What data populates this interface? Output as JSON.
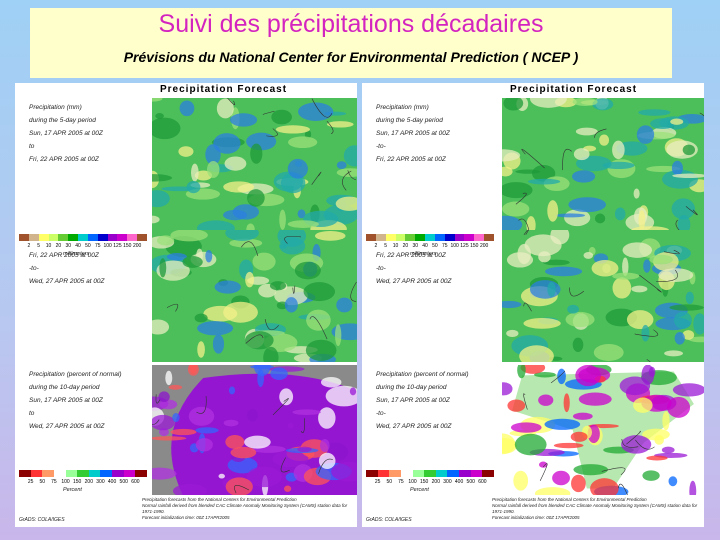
{
  "header": {
    "title": "Suivi des précipitations décadaires",
    "subtitle": "Prévisions du National Center for Environmental Prediction ( NCEP )"
  },
  "panels": [
    {
      "heading": "Precipitation Forecast",
      "sections": [
        {
          "lines": [
            "Precipitation (mm)",
            "during the 5-day period",
            "Sun, 17 APR 2005 at 00Z",
            "to",
            "Fri, 22 APR 2005 at 00Z"
          ],
          "legend": {
            "ticks": [
              2,
              5,
              10,
              20,
              30,
              40,
              50,
              75,
              100,
              125,
              150,
              200
            ],
            "unit": "millimeters"
          }
        },
        {
          "lines": [
            "Fri, 22 APR 2005 at 00Z",
            "-to-",
            "Wed, 27 APR 2005 at 00Z"
          ]
        },
        {
          "lines": [
            "Precipitation (percent of normal)",
            "during the 10-day period",
            "Sun, 17 APR 2005 at 00Z",
            "to",
            "Wed, 27 APR 2005 at 00Z"
          ],
          "legend": {
            "ticks": [
              25,
              50,
              75,
              100,
              150,
              200,
              300,
              400,
              500,
              600
            ],
            "unit": "Percent"
          }
        }
      ],
      "footer": [
        "Precipitation forecasts from the National Centers for Environmental Prediction",
        "Normal rainfall derived from blended CAC Climate Anomaly Monitoring System (CAMS) station data for 1971-1990.",
        "Forecast initialization time: 00Z 17APR2005"
      ],
      "credit": "GrADS: COLA/IGES"
    },
    {
      "heading": "Precipitation Forecast",
      "sections": [
        {
          "lines": [
            "Precipitation (mm)",
            "during the 5-day period",
            "Sun, 17 APR 2005 at 00Z",
            "-to-",
            "Fri, 22 APR 2005 at 00Z"
          ],
          "legend": {
            "ticks": [
              2,
              5,
              10,
              20,
              30,
              40,
              50,
              75,
              100,
              125,
              150,
              200
            ],
            "unit": "millimeters"
          }
        },
        {
          "lines": [
            "Fri, 22 APR 2005 at 00Z",
            "-to-",
            "Wed, 27 APR 2005 at 00Z"
          ]
        },
        {
          "lines": [
            "Precipitation (percent of normal)",
            "during the 10-day period",
            "Sun, 17 APR 2005 at 00Z",
            "-to-",
            "Wed, 27 APR 2005 at 00Z"
          ],
          "legend": {
            "ticks": [
              25,
              50,
              75,
              100,
              150,
              200,
              300,
              400,
              500,
              600
            ],
            "unit": "Percent"
          }
        }
      ],
      "footer": [
        "Precipitation forecasts from the National Centers for Environmental Prediction",
        "Normal rainfall derived from blended CAC Climate Anomaly Monitoring System (CAMS) station data for 1971-1990.",
        "Forecast initialization time: 00Z 17APR2005"
      ],
      "credit": "GrADS: COLA/IGES"
    }
  ]
}
